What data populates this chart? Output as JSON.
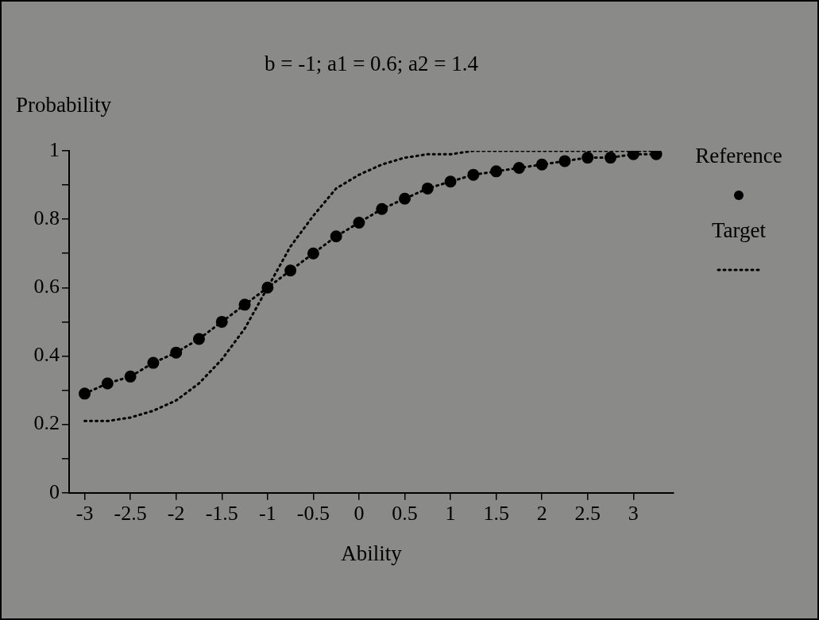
{
  "chart_data": {
    "type": "line",
    "title": "b = -1; a1 = 0.6; a2 = 1.4",
    "xlabel": "Ability",
    "ylabel": "Probability",
    "x": [
      -3,
      -2.75,
      -2.5,
      -2.25,
      -2,
      -1.75,
      -1.5,
      -1.25,
      -1,
      -0.75,
      -0.5,
      -0.25,
      0,
      0.25,
      0.5,
      0.75,
      1,
      1.25,
      1.5,
      1.75,
      2,
      2.25,
      2.5,
      2.75,
      3,
      3.25
    ],
    "series": [
      {
        "name": "Reference",
        "color": "#000000",
        "marker": "circle",
        "line_style": "dotted",
        "values": [
          0.29,
          0.32,
          0.34,
          0.38,
          0.41,
          0.45,
          0.5,
          0.55,
          0.6,
          0.65,
          0.7,
          0.75,
          0.79,
          0.83,
          0.86,
          0.89,
          0.91,
          0.93,
          0.94,
          0.95,
          0.96,
          0.97,
          0.98,
          0.98,
          0.99,
          0.99
        ]
      },
      {
        "name": "Target",
        "color": "#000000",
        "marker": "none",
        "line_style": "dotted",
        "values": [
          0.21,
          0.21,
          0.22,
          0.24,
          0.27,
          0.32,
          0.39,
          0.48,
          0.6,
          0.72,
          0.81,
          0.89,
          0.93,
          0.96,
          0.98,
          0.99,
          0.99,
          1,
          1,
          1,
          1,
          1,
          1,
          1,
          1,
          1
        ]
      }
    ],
    "xlim": [
      -3.17,
      3.44
    ],
    "xticks": [
      -3,
      -2.5,
      -2,
      -1.5,
      -1,
      -0.5,
      0,
      0.5,
      1,
      1.5,
      2,
      2.5,
      3
    ],
    "ylim": [
      0,
      1
    ],
    "yticks": [
      0,
      {
        "value": 0.1,
        "label": null
      },
      0.2,
      {
        "value": 0.3,
        "label": null
      },
      0.4,
      {
        "value": 0.5,
        "label": null
      },
      0.6,
      {
        "value": 0.7,
        "label": null
      },
      0.8,
      {
        "value": 0.9,
        "label": null
      },
      1
    ],
    "grid": false,
    "legend": "right"
  }
}
